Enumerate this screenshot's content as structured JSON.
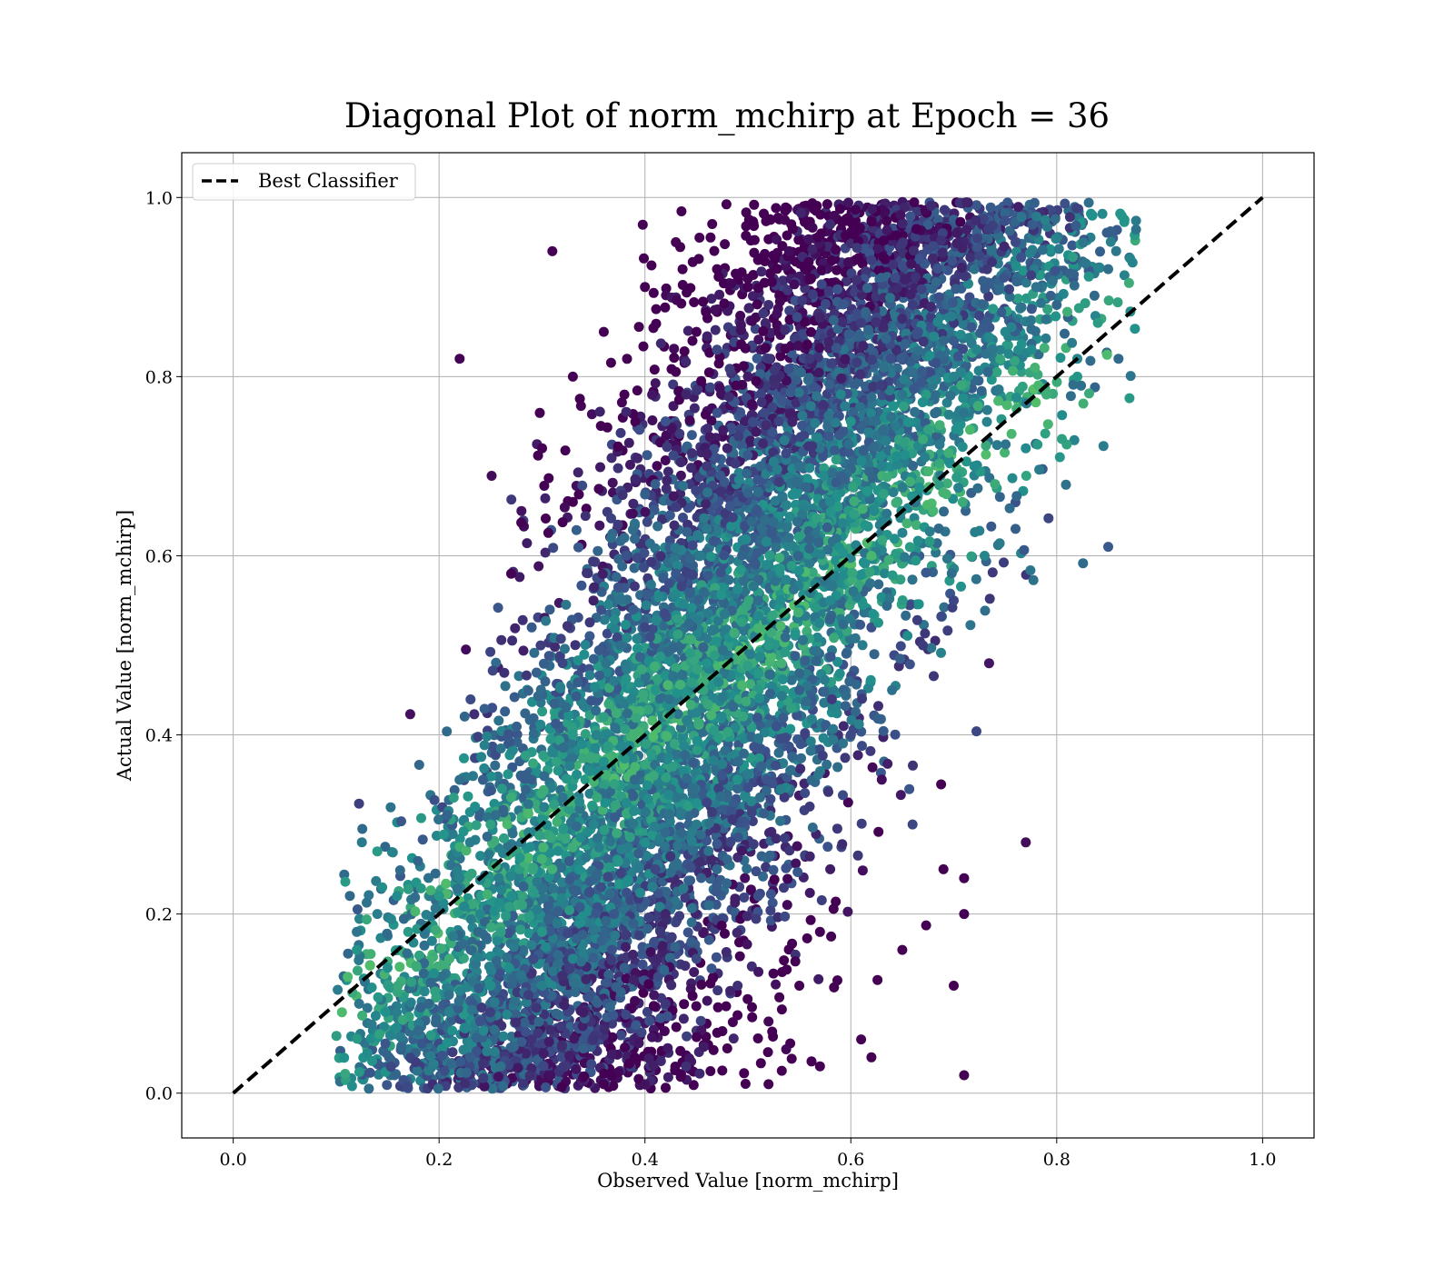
{
  "chart_data": {
    "type": "scatter",
    "title": "Diagonal Plot of norm_mchirp at Epoch = 36",
    "xlabel": "Observed Value [norm_mchirp]",
    "ylabel": "Actual Value [norm_mchirp]",
    "xlim": [
      -0.05,
      1.05
    ],
    "ylim": [
      -0.05,
      1.05
    ],
    "xticks": [
      0.0,
      0.2,
      0.4,
      0.6,
      0.8,
      1.0
    ],
    "yticks": [
      0.0,
      0.2,
      0.4,
      0.6,
      0.8,
      1.0
    ],
    "xtick_labels": [
      "0.0",
      "0.2",
      "0.4",
      "0.6",
      "0.8",
      "1.0"
    ],
    "ytick_labels": [
      "0.0",
      "0.2",
      "0.4",
      "0.6",
      "0.8",
      "1.0"
    ],
    "grid": true,
    "legend_position": "top-left",
    "colormap": "viridis",
    "legend": [
      {
        "label": "Best Classifier",
        "style": "dashed",
        "color": "#000000"
      }
    ],
    "reference_line": {
      "label": "Best Classifier",
      "x": [
        0.0,
        1.0
      ],
      "y": [
        0.0,
        1.0
      ],
      "color": "#000000",
      "style": "dashed"
    },
    "series": [
      {
        "marker_color_low": "#440154",
        "marker_color_mid": "#31688e",
        "marker_color_high": "#5ec962",
        "points": [
          [
            0.43,
            0.95
          ],
          [
            0.47,
            0.92
          ],
          [
            0.52,
            0.88
          ],
          [
            0.4,
            0.9
          ],
          [
            0.45,
            0.85
          ],
          [
            0.5,
            0.8
          ],
          [
            0.38,
            0.78
          ],
          [
            0.42,
            0.75
          ],
          [
            0.48,
            0.72
          ],
          [
            0.55,
            0.7
          ],
          [
            0.6,
            0.75
          ],
          [
            0.65,
            0.78
          ],
          [
            0.7,
            0.8
          ],
          [
            0.75,
            0.85
          ],
          [
            0.78,
            0.9
          ],
          [
            0.8,
            0.88
          ],
          [
            0.72,
            0.7
          ],
          [
            0.68,
            0.65
          ],
          [
            0.62,
            0.6
          ],
          [
            0.58,
            0.55
          ],
          [
            0.52,
            0.5
          ],
          [
            0.46,
            0.48
          ],
          [
            0.41,
            0.45
          ],
          [
            0.36,
            0.42
          ],
          [
            0.31,
            0.38
          ],
          [
            0.27,
            0.33
          ],
          [
            0.23,
            0.28
          ],
          [
            0.2,
            0.22
          ],
          [
            0.17,
            0.18
          ],
          [
            0.15,
            0.14
          ],
          [
            0.19,
            0.1
          ],
          [
            0.24,
            0.08
          ],
          [
            0.29,
            0.06
          ],
          [
            0.34,
            0.05
          ],
          [
            0.39,
            0.04
          ],
          [
            0.44,
            0.03
          ],
          [
            0.48,
            0.05
          ],
          [
            0.52,
            0.08
          ],
          [
            0.55,
            0.12
          ],
          [
            0.57,
            0.18
          ],
          [
            0.58,
            0.25
          ],
          [
            0.56,
            0.32
          ],
          [
            0.53,
            0.38
          ],
          [
            0.49,
            0.35
          ],
          [
            0.45,
            0.3
          ],
          [
            0.41,
            0.25
          ],
          [
            0.37,
            0.2
          ],
          [
            0.33,
            0.15
          ],
          [
            0.3,
            0.12
          ],
          [
            0.26,
            0.18
          ],
          [
            0.22,
            0.24
          ],
          [
            0.25,
            0.3
          ],
          [
            0.29,
            0.35
          ],
          [
            0.33,
            0.4
          ],
          [
            0.37,
            0.46
          ],
          [
            0.4,
            0.52
          ],
          [
            0.43,
            0.58
          ],
          [
            0.46,
            0.63
          ],
          [
            0.5,
            0.67
          ],
          [
            0.54,
            0.62
          ],
          [
            0.58,
            0.66
          ],
          [
            0.63,
            0.7
          ],
          [
            0.67,
            0.73
          ],
          [
            0.71,
            0.76
          ],
          [
            0.74,
            0.68
          ],
          [
            0.77,
            0.72
          ],
          [
            0.79,
            0.78
          ],
          [
            0.82,
            0.82
          ],
          [
            0.84,
            0.86
          ],
          [
            0.85,
            0.92
          ],
          [
            0.36,
            0.85
          ],
          [
            0.33,
            0.8
          ],
          [
            0.3,
            0.72
          ],
          [
            0.28,
            0.65
          ],
          [
            0.27,
            0.58
          ],
          [
            0.29,
            0.52
          ],
          [
            0.32,
            0.48
          ],
          [
            0.35,
            0.55
          ],
          [
            0.38,
            0.62
          ],
          [
            0.41,
            0.68
          ],
          [
            0.44,
            0.78
          ],
          [
            0.47,
            0.83
          ],
          [
            0.5,
            0.9
          ],
          [
            0.54,
            0.94
          ],
          [
            0.58,
            0.97
          ],
          [
            0.62,
            0.93
          ],
          [
            0.66,
            0.88
          ],
          [
            0.69,
            0.84
          ],
          [
            0.72,
            0.92
          ],
          [
            0.76,
            0.95
          ],
          [
            0.6,
            0.4
          ],
          [
            0.63,
            0.35
          ],
          [
            0.66,
            0.3
          ],
          [
            0.69,
            0.25
          ],
          [
            0.71,
            0.2
          ],
          [
            0.64,
            0.45
          ],
          [
            0.67,
            0.5
          ],
          [
            0.7,
            0.55
          ],
          [
            0.73,
            0.6
          ],
          [
            0.76,
            0.63
          ],
          [
            0.22,
            0.82
          ],
          [
            0.14,
            0.27
          ],
          [
            0.12,
            0.18
          ],
          [
            0.12,
            0.16
          ],
          [
            0.14,
            0.2
          ],
          [
            0.31,
            0.94
          ],
          [
            0.82,
            0.8
          ],
          [
            0.86,
            0.82
          ],
          [
            0.85,
            0.61
          ],
          [
            0.77,
            0.28
          ],
          [
            0.71,
            0.24
          ],
          [
            0.7,
            0.12
          ],
          [
            0.71,
            0.02
          ],
          [
            0.62,
            0.04
          ],
          [
            0.65,
            0.16
          ],
          [
            0.61,
            0.06
          ],
          [
            0.57,
            0.03
          ],
          [
            0.52,
            0.01
          ],
          [
            0.4,
            0.01
          ],
          [
            0.36,
            0.01
          ],
          [
            0.26,
            0.03
          ],
          [
            0.23,
            0.04
          ],
          [
            0.21,
            0.09
          ],
          [
            0.18,
            0.07
          ],
          [
            0.16,
            0.12
          ],
          [
            0.45,
            0.15
          ],
          [
            0.42,
            0.2
          ],
          [
            0.47,
            0.25
          ],
          [
            0.51,
            0.22
          ],
          [
            0.49,
            0.12
          ],
          [
            0.55,
            0.45
          ],
          [
            0.51,
            0.55
          ],
          [
            0.56,
            0.82
          ],
          [
            0.61,
            0.86
          ],
          [
            0.53,
            0.75
          ],
          [
            0.46,
            0.7
          ],
          [
            0.39,
            0.35
          ],
          [
            0.35,
            0.3
          ],
          [
            0.31,
            0.25
          ],
          [
            0.27,
            0.22
          ],
          [
            0.42,
            0.1
          ],
          [
            0.38,
            0.14
          ],
          [
            0.34,
            0.09
          ],
          [
            0.3,
            0.18
          ],
          [
            0.25,
            0.12
          ],
          [
            0.21,
            0.15
          ],
          [
            0.24,
            0.2
          ],
          [
            0.28,
            0.28
          ],
          [
            0.32,
            0.33
          ],
          [
            0.36,
            0.37
          ]
        ]
      }
    ]
  }
}
